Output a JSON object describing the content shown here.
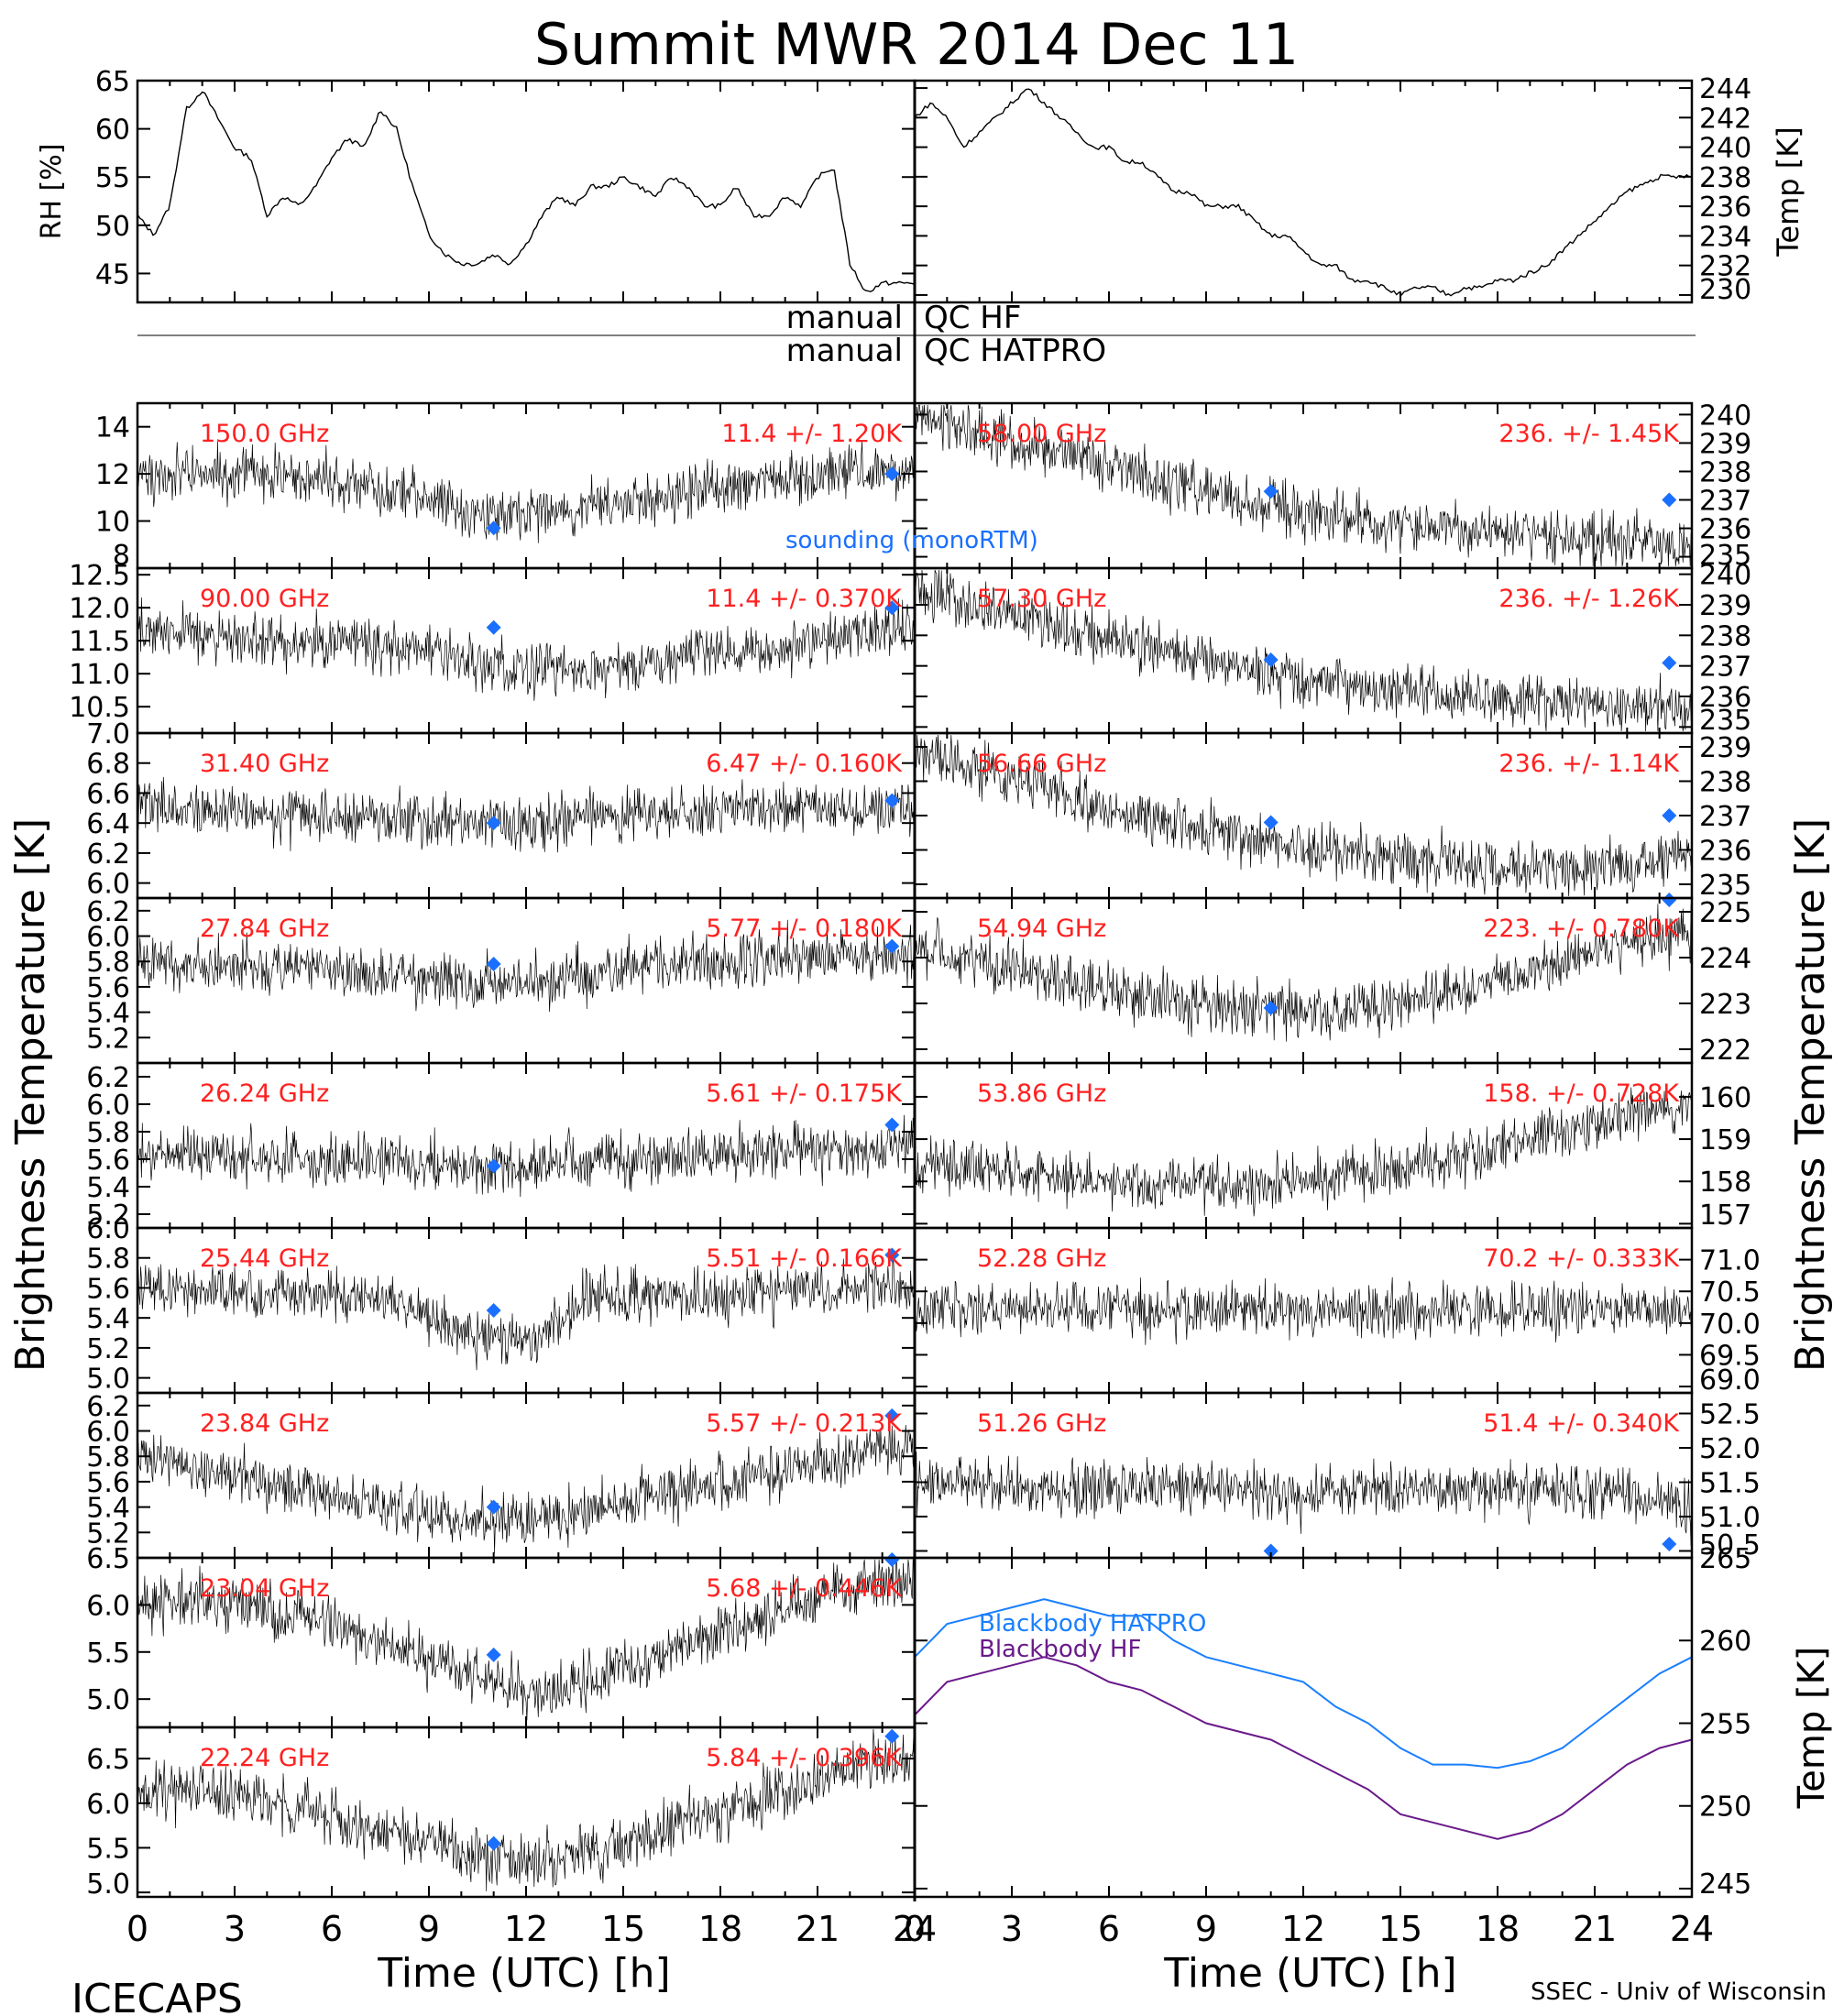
{
  "figure": {
    "title": "Summit MWR 2014 Dec 11",
    "footer_left": "ICECAPS",
    "footer_right": "SSEC - Univ of Wisconsin",
    "xlabel": "Time (UTC) [h]",
    "ylabel_left": "Brightness Temperature [K]",
    "ylabel_right": "Brightness Temperature [K]",
    "qc_left_1": "manual",
    "qc_right_1": "QC HF",
    "qc_left_2": "manual",
    "qc_right_2": "QC HATPRO",
    "x_ticks": [
      "0",
      "3",
      "6",
      "9",
      "12",
      "15",
      "18",
      "21",
      "24"
    ],
    "legend_sounding": "sounding (monoRTM)"
  },
  "colors": {
    "noise": "#000000",
    "label": "#ff2020",
    "sounding": "#1a6fff",
    "hatpro": "#1a7fff",
    "hf": "#6a1a8a"
  },
  "chart_data": [
    {
      "id": "rh",
      "type": "line",
      "ylabel": "RH [%]",
      "ylim": [
        42,
        65
      ],
      "yticks": [
        "45",
        "50",
        "55",
        "60",
        "65"
      ],
      "x": [
        0,
        0.5,
        1,
        1.5,
        2,
        2.5,
        3,
        3.5,
        4,
        4.5,
        5,
        5.5,
        6,
        6.5,
        7,
        7.5,
        8,
        8.5,
        9,
        9.5,
        10,
        10.5,
        11,
        11.5,
        12,
        12.5,
        13,
        13.5,
        14,
        14.5,
        15,
        15.5,
        16,
        16.5,
        17,
        17.5,
        18,
        18.5,
        19,
        19.5,
        20,
        20.5,
        21,
        21.5,
        22,
        22.5,
        23,
        23.5,
        24
      ],
      "values": [
        51,
        49,
        52,
        62,
        64,
        61,
        58,
        57,
        51,
        53,
        52,
        54,
        57,
        59,
        58,
        62,
        60,
        54,
        49,
        47,
        46,
        46,
        47,
        46,
        48,
        51,
        53,
        52,
        54,
        54,
        55,
        54,
        53,
        55,
        54,
        52,
        52,
        54,
        51,
        51,
        53,
        52,
        55,
        56,
        46,
        43,
        44,
        44,
        44
      ]
    },
    {
      "id": "temp",
      "type": "line",
      "ylabel": "Temp [K]",
      "ylim": [
        229.5,
        244.5
      ],
      "yticks": [
        "230",
        "232",
        "234",
        "236",
        "238",
        "240",
        "242",
        "244"
      ],
      "x": [
        0,
        0.5,
        1,
        1.5,
        2,
        2.5,
        3,
        3.5,
        4,
        4.5,
        5,
        5.5,
        6,
        6.5,
        7,
        7.5,
        8,
        8.5,
        9,
        9.5,
        10,
        10.5,
        11,
        11.5,
        12,
        12.5,
        13,
        13.5,
        14,
        14.5,
        15,
        15.5,
        16,
        16.5,
        17,
        17.5,
        18,
        18.5,
        19,
        19.5,
        20,
        20.5,
        21,
        21.5,
        22,
        22.5,
        23,
        23.5,
        24
      ],
      "values": [
        242,
        243,
        242,
        240,
        241,
        242,
        243,
        244,
        243,
        242,
        241,
        240,
        240,
        239,
        239,
        238,
        237,
        237,
        236,
        236,
        236,
        235,
        234,
        234,
        233,
        232,
        232,
        231,
        231,
        230.5,
        230,
        230.5,
        230.5,
        230,
        230.5,
        230.5,
        231,
        231,
        231.5,
        232,
        233,
        234,
        235,
        236,
        237,
        237.5,
        238,
        238,
        238
      ]
    },
    {
      "id": "ch150",
      "type": "line",
      "freq": "150.0 GHz",
      "stat": "11.4 +/- 1.20K",
      "ylim": [
        8,
        15
      ],
      "yticks": [
        "8",
        "10",
        "12",
        "14"
      ],
      "x": [
        0,
        2,
        4,
        6,
        8,
        10,
        12,
        14,
        16,
        18,
        20,
        22,
        24
      ],
      "values": [
        12,
        12,
        12,
        11.8,
        11.3,
        10.5,
        10.3,
        10.6,
        11,
        11.4,
        11.8,
        12.2,
        12.2
      ],
      "sounding": [
        [
          11,
          9.7
        ],
        [
          23.3,
          12
        ]
      ]
    },
    {
      "id": "ch58",
      "type": "line",
      "freq": "58.00 GHz",
      "stat": "236. +/- 1.45K",
      "ylim": [
        234.6,
        240.4
      ],
      "yticks": [
        "235",
        "236",
        "237",
        "238",
        "239",
        "240"
      ],
      "x": [
        0,
        2,
        4,
        6,
        8,
        10,
        12,
        14,
        16,
        18,
        20,
        22,
        24
      ],
      "values": [
        240,
        239.3,
        238.8,
        238.2,
        237.6,
        237,
        236.6,
        236.3,
        236,
        235.8,
        235.7,
        235.6,
        235.5
      ],
      "sounding": [
        [
          11,
          237.3
        ],
        [
          23.3,
          237
        ]
      ]
    },
    {
      "id": "ch90",
      "type": "line",
      "freq": "90.00 GHz",
      "stat": "11.4 +/- 0.370K",
      "ylim": [
        10.1,
        12.6
      ],
      "yticks": [
        "10.5",
        "11.0",
        "11.5",
        "12.0",
        "12.5"
      ],
      "x": [
        0,
        2,
        4,
        6,
        8,
        10,
        12,
        14,
        16,
        18,
        20,
        22,
        24
      ],
      "values": [
        11.7,
        11.6,
        11.5,
        11.5,
        11.4,
        11.2,
        11.1,
        11.1,
        11.2,
        11.3,
        11.4,
        11.6,
        11.7
      ],
      "sounding": [
        [
          11,
          11.7
        ],
        [
          23.3,
          12
        ]
      ]
    },
    {
      "id": "ch5730",
      "type": "line",
      "freq": "57.30 GHz",
      "stat": "236. +/- 1.26K",
      "ylim": [
        234.8,
        240.2
      ],
      "yticks": [
        "235",
        "236",
        "237",
        "238",
        "239",
        "240"
      ],
      "x": [
        0,
        2,
        4,
        6,
        8,
        10,
        12,
        14,
        16,
        18,
        20,
        22,
        24
      ],
      "values": [
        239.6,
        239,
        238.4,
        237.9,
        237.4,
        237,
        236.6,
        236.3,
        236.1,
        235.9,
        235.8,
        235.7,
        235.6
      ],
      "sounding": [
        [
          11,
          237.2
        ],
        [
          23.3,
          237.1
        ]
      ]
    },
    {
      "id": "ch3140",
      "type": "line",
      "freq": "31.40 GHz",
      "stat": "6.47 +/- 0.160K",
      "ylim": [
        5.9,
        7.0
      ],
      "yticks": [
        "6.0",
        "6.2",
        "6.4",
        "6.6",
        "6.8",
        "7.0"
      ],
      "x": [
        0,
        2,
        4,
        6,
        8,
        10,
        12,
        14,
        16,
        18,
        20,
        22,
        24
      ],
      "values": [
        6.5,
        6.5,
        6.45,
        6.45,
        6.45,
        6.4,
        6.4,
        6.45,
        6.45,
        6.5,
        6.5,
        6.5,
        6.5
      ],
      "sounding": [
        [
          11,
          6.4
        ],
        [
          23.3,
          6.55
        ]
      ]
    },
    {
      "id": "ch5666",
      "type": "line",
      "freq": "56.66 GHz",
      "stat": "236. +/- 1.14K",
      "ylim": [
        234.6,
        239.4
      ],
      "yticks": [
        "235",
        "236",
        "237",
        "238",
        "239"
      ],
      "x": [
        0,
        2,
        4,
        6,
        8,
        10,
        12,
        14,
        16,
        18,
        20,
        22,
        24
      ],
      "values": [
        238.9,
        238.4,
        237.8,
        237.2,
        236.8,
        236.4,
        236.1,
        235.8,
        235.6,
        235.5,
        235.5,
        235.6,
        235.7
      ],
      "sounding": [
        [
          11,
          236.8
        ],
        [
          23.3,
          237
        ]
      ]
    },
    {
      "id": "ch2784",
      "type": "line",
      "freq": "27.84 GHz",
      "stat": "5.77 +/- 0.180K",
      "ylim": [
        5.0,
        6.3
      ],
      "yticks": [
        "5.2",
        "5.4",
        "5.6",
        "5.8",
        "6.0",
        "6.2"
      ],
      "x": [
        0,
        2,
        4,
        6,
        8,
        10,
        12,
        14,
        16,
        18,
        20,
        22,
        24
      ],
      "values": [
        5.8,
        5.8,
        5.75,
        5.75,
        5.7,
        5.65,
        5.6,
        5.7,
        5.75,
        5.8,
        5.85,
        5.85,
        5.85
      ],
      "sounding": [
        [
          11,
          5.78
        ],
        [
          23.3,
          5.92
        ]
      ]
    },
    {
      "id": "ch5494",
      "type": "line",
      "freq": "54.94 GHz",
      "stat": "223. +/- 0.780K",
      "ylim": [
        221.7,
        225.3
      ],
      "yticks": [
        "222",
        "223",
        "224",
        "225"
      ],
      "x": [
        0,
        2,
        4,
        6,
        8,
        10,
        12,
        14,
        16,
        18,
        20,
        22,
        24
      ],
      "values": [
        224.2,
        223.9,
        223.6,
        223.3,
        223,
        222.9,
        222.8,
        222.9,
        223.2,
        223.5,
        223.9,
        224.3,
        224.6
      ],
      "sounding": [
        [
          11,
          222.9
        ],
        [
          23.3,
          225.5
        ]
      ]
    },
    {
      "id": "ch2624",
      "type": "line",
      "freq": "26.24 GHz",
      "stat": "5.61 +/- 0.175K",
      "ylim": [
        5.1,
        6.3
      ],
      "yticks": [
        "5.2",
        "5.4",
        "5.6",
        "5.8",
        "6.0",
        "6.2"
      ],
      "x": [
        0,
        2,
        4,
        6,
        8,
        10,
        12,
        14,
        16,
        18,
        20,
        22,
        24
      ],
      "values": [
        5.65,
        5.65,
        5.6,
        5.6,
        5.6,
        5.55,
        5.55,
        5.6,
        5.6,
        5.65,
        5.65,
        5.65,
        5.7
      ],
      "sounding": [
        [
          11,
          5.55
        ],
        [
          23.3,
          5.85
        ]
      ]
    },
    {
      "id": "ch5386",
      "type": "line",
      "freq": "53.86 GHz",
      "stat": "158. +/- 0.728K",
      "ylim": [
        156.9,
        160.8
      ],
      "yticks": [
        "157",
        "158",
        "159",
        "160"
      ],
      "x": [
        0,
        2,
        4,
        6,
        8,
        10,
        12,
        14,
        16,
        18,
        20,
        22,
        24
      ],
      "values": [
        158.4,
        158.3,
        158.1,
        158,
        157.9,
        157.9,
        158,
        158.2,
        158.5,
        158.8,
        159.2,
        159.6,
        159.8
      ]
    },
    {
      "id": "ch2544",
      "type": "line",
      "freq": "25.44 GHz",
      "stat": "5.51 +/- 0.166K",
      "ylim": [
        4.9,
        6.0
      ],
      "yticks": [
        "5.0",
        "5.2",
        "5.4",
        "5.6",
        "5.8",
        "6.0"
      ],
      "x": [
        0,
        2,
        4,
        6,
        8,
        10,
        12,
        14,
        16,
        18,
        20,
        22,
        24
      ],
      "values": [
        5.6,
        5.6,
        5.55,
        5.55,
        5.5,
        5.3,
        5.25,
        5.55,
        5.55,
        5.55,
        5.6,
        5.6,
        5.6
      ],
      "sounding": [
        [
          11,
          5.45
        ],
        [
          23.3,
          5.82
        ]
      ]
    },
    {
      "id": "ch5228",
      "type": "line",
      "freq": "52.28 GHz",
      "stat": "70.2 +/- 0.333K",
      "ylim": [
        68.9,
        71.5
      ],
      "yticks": [
        "69.0",
        "69.5",
        "70.0",
        "70.5",
        "71.0"
      ],
      "x": [
        0,
        2,
        4,
        6,
        8,
        10,
        12,
        14,
        16,
        18,
        20,
        22,
        24
      ],
      "values": [
        70.2,
        70.2,
        70.2,
        70.2,
        70.2,
        70.2,
        70.2,
        70.2,
        70.2,
        70.2,
        70.2,
        70.2,
        70.2
      ]
    },
    {
      "id": "ch2384",
      "type": "line",
      "freq": "23.84 GHz",
      "stat": "5.57 +/- 0.213K",
      "ylim": [
        5.0,
        6.3
      ],
      "yticks": [
        "5.2",
        "5.4",
        "5.6",
        "5.8",
        "6.0",
        "6.2"
      ],
      "x": [
        0,
        2,
        4,
        6,
        8,
        10,
        12,
        14,
        16,
        18,
        20,
        22,
        24
      ],
      "values": [
        5.8,
        5.7,
        5.6,
        5.5,
        5.4,
        5.3,
        5.3,
        5.4,
        5.5,
        5.6,
        5.7,
        5.8,
        5.9
      ],
      "sounding": [
        [
          11,
          5.4
        ],
        [
          23.3,
          6.12
        ]
      ]
    },
    {
      "id": "ch5126",
      "type": "line",
      "freq": "51.26 GHz",
      "stat": "51.4 +/- 0.340K",
      "ylim": [
        50.4,
        52.8
      ],
      "yticks": [
        "50.5",
        "51.0",
        "51.5",
        "52.0",
        "52.5"
      ],
      "x": [
        0,
        2,
        4,
        6,
        8,
        10,
        12,
        14,
        16,
        18,
        20,
        22,
        24
      ],
      "values": [
        51.5,
        51.5,
        51.4,
        51.4,
        51.4,
        51.4,
        51.3,
        51.4,
        51.4,
        51.4,
        51.4,
        51.3,
        51.1
      ],
      "sounding": [
        [
          11,
          50.5
        ],
        [
          23.3,
          50.6
        ]
      ]
    },
    {
      "id": "ch2304",
      "type": "line",
      "freq": "23.04 GHz",
      "stat": "5.68 +/- 0.446K",
      "ylim": [
        4.7,
        6.5
      ],
      "yticks": [
        "5.0",
        "5.5",
        "6.0",
        "6.5"
      ],
      "x": [
        0,
        2,
        4,
        6,
        8,
        10,
        12,
        14,
        16,
        18,
        20,
        22,
        24
      ],
      "values": [
        6,
        6.05,
        5.95,
        5.8,
        5.55,
        5.3,
        5.05,
        5.2,
        5.45,
        5.7,
        5.95,
        6.2,
        6.25
      ],
      "sounding": [
        [
          11,
          5.47
        ],
        [
          23.3,
          6.5
        ]
      ]
    },
    {
      "id": "ch2224",
      "type": "line",
      "freq": "22.24 GHz",
      "stat": "5.84 +/- 0.396K",
      "ylim": [
        4.95,
        6.85
      ],
      "yticks": [
        "5.0",
        "5.5",
        "6.0",
        "6.5"
      ],
      "x": [
        0,
        2,
        4,
        6,
        8,
        10,
        12,
        14,
        16,
        18,
        20,
        22,
        24
      ],
      "values": [
        6.15,
        6.15,
        6,
        5.85,
        5.65,
        5.45,
        5.35,
        5.45,
        5.65,
        5.9,
        6.15,
        6.4,
        6.55
      ],
      "sounding": [
        [
          11,
          5.55
        ],
        [
          23.3,
          6.75
        ]
      ]
    },
    {
      "id": "blackbody",
      "type": "line",
      "ylabel": "Temp [K]",
      "ylim": [
        244.5,
        265
      ],
      "yticks": [
        "245",
        "250",
        "255",
        "260",
        "265"
      ],
      "x": [
        0,
        1,
        2,
        3,
        4,
        5,
        6,
        7,
        8,
        9,
        10,
        11,
        12,
        13,
        14,
        15,
        16,
        17,
        18,
        19,
        20,
        21,
        22,
        23,
        24
      ],
      "series": [
        {
          "name": "Blackbody HATPRO",
          "values": [
            259,
            261,
            261.5,
            262,
            262.5,
            262,
            261.5,
            261.5,
            260,
            259,
            258.5,
            258,
            257.5,
            256,
            255,
            253.5,
            252.5,
            252.5,
            252.3,
            252.7,
            253.5,
            255,
            256.5,
            258,
            259
          ]
        },
        {
          "name": "Blackbody HF",
          "values": [
            255.5,
            257.5,
            258,
            258.5,
            259,
            258.5,
            257.5,
            257,
            256,
            255,
            254.5,
            254,
            253,
            252,
            251,
            249.5,
            249,
            248.5,
            248,
            248.5,
            249.5,
            251,
            252.5,
            253.5,
            254
          ]
        }
      ]
    }
  ]
}
